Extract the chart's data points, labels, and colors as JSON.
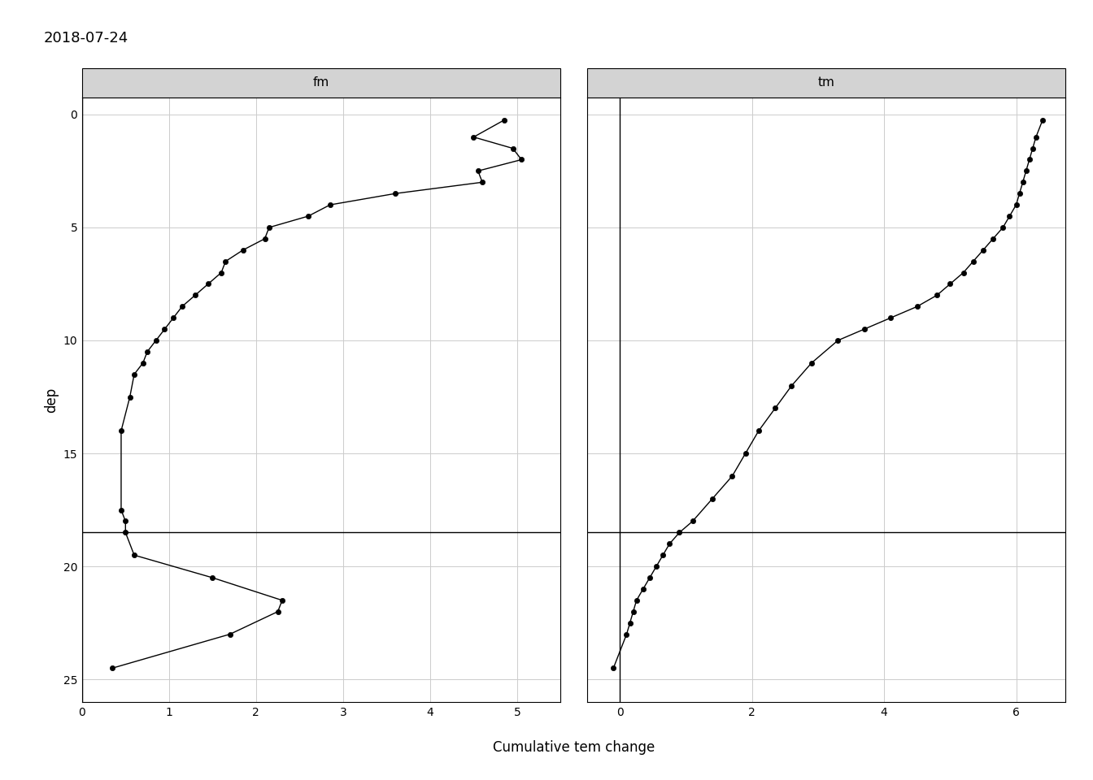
{
  "title": "2018-07-24",
  "xlabel": "Cumulative tem change",
  "ylabel": "dep",
  "fm_label": "fm",
  "tm_label": "tm",
  "hline_y": 18.5,
  "fm_data": {
    "dep": [
      0.25,
      1.0,
      1.5,
      2.0,
      2.5,
      3.0,
      3.5,
      4.0,
      4.5,
      5.0,
      5.5,
      6.0,
      6.5,
      7.0,
      7.5,
      8.0,
      8.5,
      9.0,
      9.5,
      10.0,
      10.5,
      11.0,
      11.5,
      12.5,
      14.0,
      17.5,
      18.0,
      18.5,
      19.5,
      20.5,
      21.5,
      22.0,
      23.0,
      24.5
    ],
    "val": [
      4.85,
      4.5,
      4.95,
      5.05,
      4.55,
      4.6,
      3.6,
      2.85,
      2.6,
      2.15,
      2.1,
      1.85,
      1.65,
      1.6,
      1.45,
      1.3,
      1.15,
      1.05,
      0.95,
      0.85,
      0.75,
      0.7,
      0.6,
      0.55,
      0.45,
      0.45,
      0.5,
      0.5,
      0.6,
      1.5,
      2.3,
      2.25,
      1.7,
      0.35
    ]
  },
  "tm_data": {
    "dep": [
      0.25,
      1.0,
      1.5,
      2.0,
      2.5,
      3.0,
      3.5,
      4.0,
      4.5,
      5.0,
      5.5,
      6.0,
      6.5,
      7.0,
      7.5,
      8.0,
      8.5,
      9.0,
      9.5,
      10.0,
      11.0,
      12.0,
      13.0,
      14.0,
      15.0,
      16.0,
      17.0,
      18.0,
      18.5,
      19.0,
      19.5,
      20.0,
      20.5,
      21.0,
      21.5,
      22.0,
      22.5,
      23.0,
      24.5
    ],
    "val": [
      6.4,
      6.3,
      6.25,
      6.2,
      6.15,
      6.1,
      6.05,
      6.0,
      5.9,
      5.8,
      5.65,
      5.5,
      5.35,
      5.2,
      5.0,
      4.8,
      4.5,
      4.1,
      3.7,
      3.3,
      2.9,
      2.6,
      2.35,
      2.1,
      1.9,
      1.7,
      1.4,
      1.1,
      0.9,
      0.75,
      0.65,
      0.55,
      0.45,
      0.35,
      0.25,
      0.2,
      0.15,
      0.1,
      -0.1
    ]
  },
  "fm_xlim": [
    0,
    5.5
  ],
  "tm_xlim": [
    -0.5,
    6.75
  ],
  "ylim": [
    26.0,
    -0.75
  ],
  "yticks": [
    0,
    5,
    10,
    15,
    20,
    25
  ],
  "fm_xticks": [
    0,
    1,
    2,
    3,
    4,
    5
  ],
  "tm_xticks": [
    0,
    2,
    4,
    6
  ],
  "background_color": "#ffffff",
  "panel_bg": "#ffffff",
  "grid_color": "#cccccc",
  "line_color": "#000000",
  "marker_color": "#000000",
  "title_fontsize": 13,
  "label_fontsize": 12,
  "tick_fontsize": 10,
  "panel_label_fontsize": 11,
  "panel_header_color": "#d3d3d3"
}
